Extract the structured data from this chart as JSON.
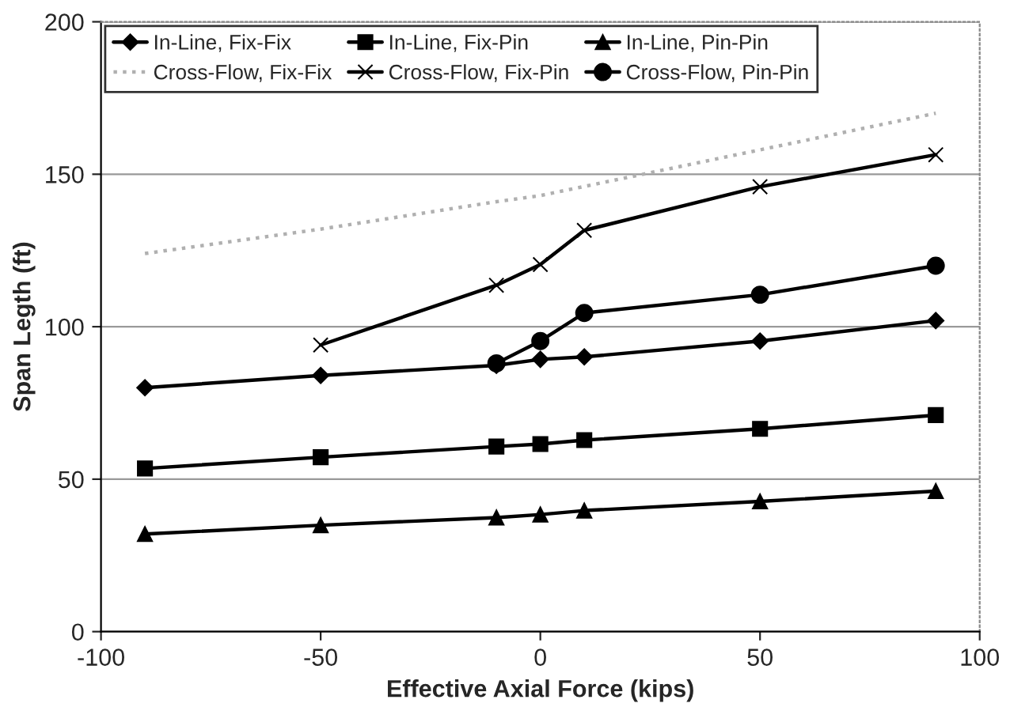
{
  "chart_data": {
    "type": "line",
    "xlabel": "Effective Axial Force (kips)",
    "ylabel": "Span Legth (ft)",
    "xlim": [
      -100,
      100
    ],
    "xticks": [
      -100,
      -50,
      0,
      50,
      100
    ],
    "ylim": [
      0,
      200
    ],
    "yticks": [
      0,
      50,
      100,
      150,
      200
    ],
    "grid": "y",
    "legend": "top left",
    "series": [
      {
        "name": "In-Line, Fix-Fix",
        "color": "#000000",
        "marker": "diamond",
        "line_style": "solid",
        "x": [
          -90,
          -50,
          -10,
          0,
          10,
          50,
          90
        ],
        "values": [
          80,
          84,
          87.3,
          89.3,
          90.1,
          95.3,
          102
        ]
      },
      {
        "name": "In-Line, Fix-Pin",
        "color": "#000000",
        "marker": "square",
        "line_style": "solid",
        "x": [
          -90,
          -50,
          -10,
          0,
          10,
          50,
          90
        ],
        "values": [
          53.5,
          57.2,
          60.7,
          61.5,
          62.8,
          66.5,
          71
        ]
      },
      {
        "name": "In-Line, Pin-Pin",
        "color": "#000000",
        "marker": "triangle",
        "line_style": "solid",
        "x": [
          -90,
          -50,
          -10,
          0,
          10,
          50,
          90
        ],
        "values": [
          32,
          34.9,
          37.4,
          38.4,
          39.7,
          42.7,
          46.1
        ]
      },
      {
        "name": "Cross-Flow, Fix-Fix",
        "color": "#b0b0b0",
        "marker": "none",
        "line_style": "dotted",
        "x": [
          -90,
          -50,
          -10,
          0,
          10,
          50,
          90
        ],
        "values": [
          124,
          132,
          141,
          143,
          146,
          158,
          170
        ]
      },
      {
        "name": "Cross-Flow, Fix-Pin",
        "color": "#000000",
        "marker": "cross",
        "line_style": "solid",
        "x": [
          -50,
          -10,
          0,
          10,
          50,
          90
        ],
        "values": [
          94,
          113.6,
          120.4,
          131.6,
          145.9,
          156.4
        ]
      },
      {
        "name": "Cross-Flow, Pin-Pin",
        "color": "#000000",
        "marker": "circle",
        "line_style": "solid",
        "x": [
          -10,
          0,
          10,
          50,
          90
        ],
        "values": [
          88,
          95.3,
          104.5,
          110.5,
          120
        ]
      }
    ]
  }
}
